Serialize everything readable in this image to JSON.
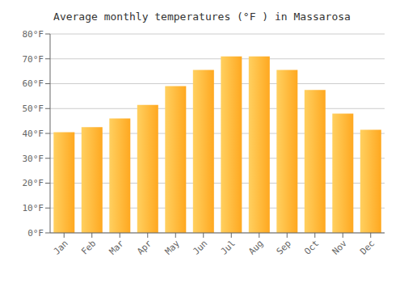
{
  "chart_data": {
    "type": "bar",
    "title": "Average monthly temperatures (°F ) in Massarosa",
    "categories": [
      "Jan",
      "Feb",
      "Mar",
      "Apr",
      "May",
      "Jun",
      "Jul",
      "Aug",
      "Sep",
      "Oct",
      "Nov",
      "Dec"
    ],
    "values": [
      40.5,
      42.5,
      46,
      51.5,
      59,
      65.5,
      71,
      71,
      65.5,
      57.5,
      48,
      41.5
    ],
    "color": [
      "#FFD060",
      "#FFA820"
    ],
    "ylim": [
      0,
      80
    ],
    "yticks": [
      {
        "value": 0,
        "label": "0°F"
      },
      {
        "value": 10,
        "label": "10°F"
      },
      {
        "value": 20,
        "label": "20°F"
      },
      {
        "value": 30,
        "label": "30°F"
      },
      {
        "value": 40,
        "label": "40°F"
      },
      {
        "value": 50,
        "label": "50°F"
      },
      {
        "value": 60,
        "label": "60°F"
      },
      {
        "value": 70,
        "label": "70°F"
      },
      {
        "value": 80,
        "label": "80°F"
      }
    ],
    "grid": true
  }
}
